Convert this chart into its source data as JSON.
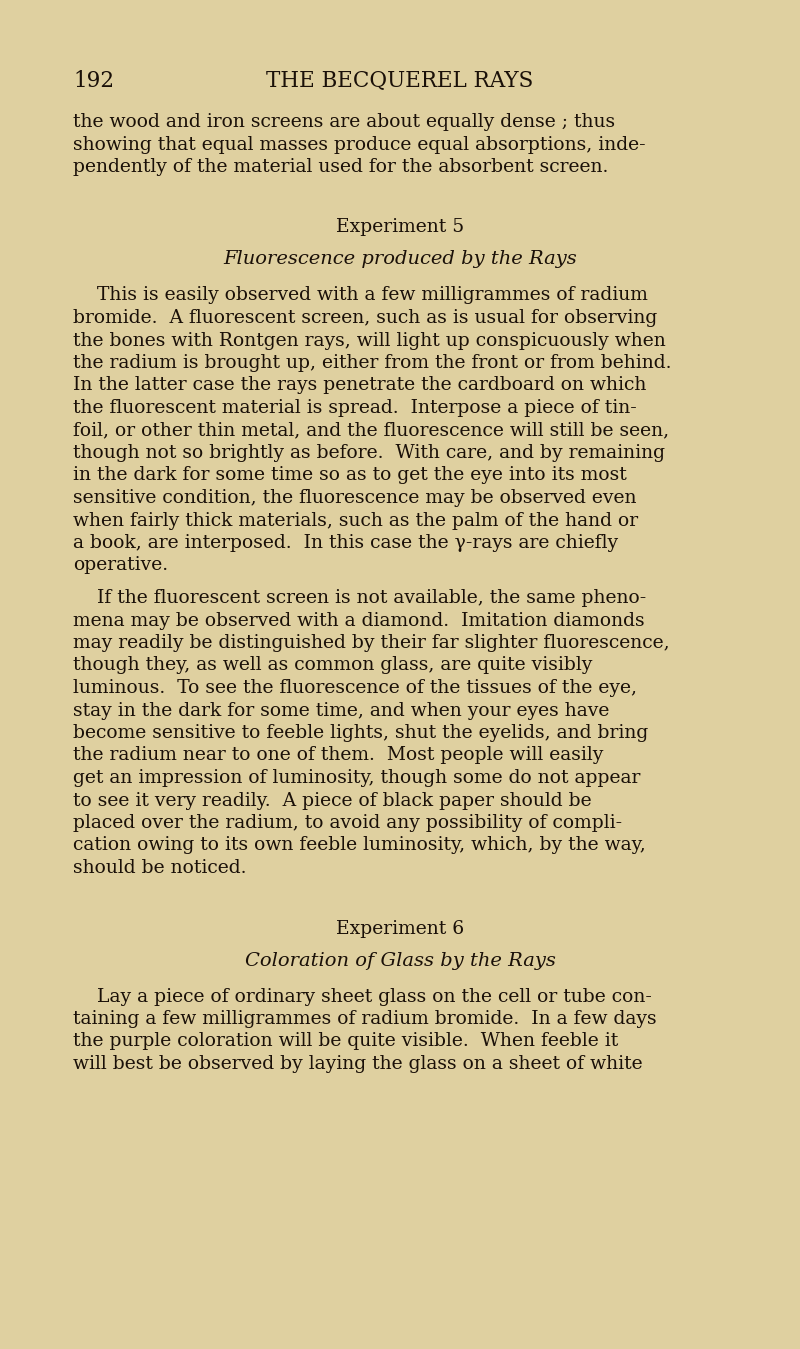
{
  "background_color": "#dfd0a0",
  "page_number": "192",
  "chapter_title": "THE BECQUEREL RAYS",
  "header_fontsize": 15.5,
  "body_fontsize": 13.5,
  "section_fontsize": 13.5,
  "italic_fontsize": 14.0,
  "text_color": "#1a1008",
  "opening_lines": [
    "the wood and iron screens are about equally dense ; thus",
    "showing that equal masses produce equal absorptions, inde-",
    "pendently of the material used for the absorbent screen."
  ],
  "experiment5_heading": "Experiment 5",
  "experiment5_subtitle": "Fluorescence produced by the Rays",
  "p1_lines": [
    "    This is easily observed with a few milligrammes of radium",
    "bromide.  A fluorescent screen, such as is usual for observing",
    "the bones with Rontgen rays, will light up conspicuously when",
    "the radium is brought up, either from the front or from behind.",
    "In the latter case the rays penetrate the cardboard on which",
    "the fluorescent material is spread.  Interpose a piece of tin-",
    "foil, or other thin metal, and the fluorescence will still be seen,",
    "though not so brightly as before.  With care, and by remaining",
    "in the dark for some time so as to get the eye into its most",
    "sensitive condition, the fluorescence may be observed even",
    "when fairly thick materials, such as the palm of the hand or",
    "a book, are interposed.  In this case the γ-rays are chiefly",
    "operative."
  ],
  "p2_lines": [
    "    If the fluorescent screen is not available, the same pheno-",
    "mena may be observed with a diamond.  Imitation diamonds",
    "may readily be distinguished by their far slighter fluorescence,",
    "though they, as well as common glass, are quite visibly",
    "luminous.  To see the fluorescence of the tissues of the eye,",
    "stay in the dark for some time, and when your eyes have",
    "become sensitive to feeble lights, shut the eyelids, and bring",
    "the radium near to one of them.  Most people will easily",
    "get an impression of luminosity, though some do not appear",
    "to see it very readily.  A piece of black paper should be",
    "placed over the radium, to avoid any possibility of compli-",
    "cation owing to its own feeble luminosity, which, by the way,",
    "should be noticed."
  ],
  "experiment6_heading": "Experiment 6",
  "experiment6_subtitle": "Coloration of Glass by the Rays",
  "p3_lines": [
    "    Lay a piece of ordinary sheet glass on the cell or tube con-",
    "taining a few milligrammes of radium bromide.  In a few days",
    "the purple coloration will be quite visible.  When feeble it",
    "will best be observed by laying the glass on a sheet of white"
  ]
}
